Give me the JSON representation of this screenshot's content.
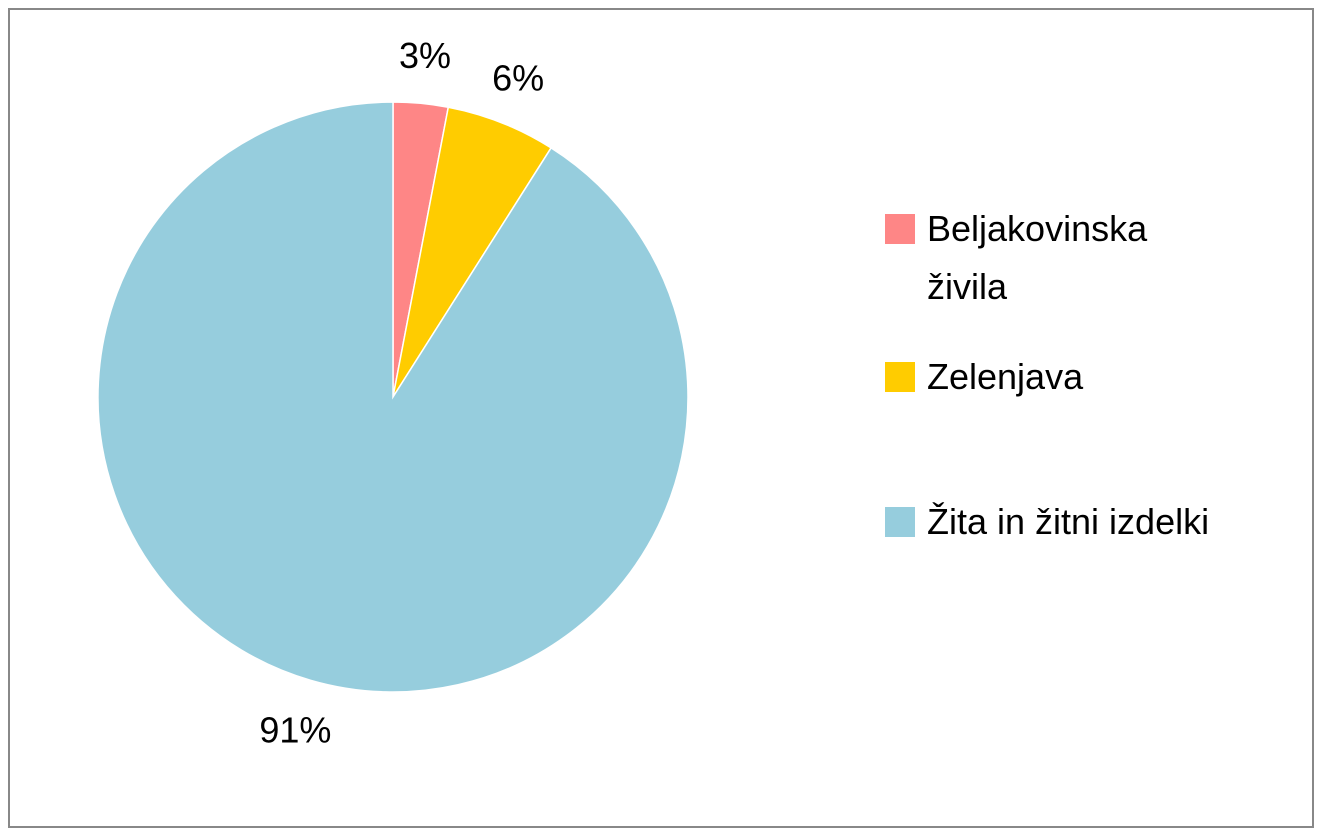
{
  "chart_data": {
    "type": "pie",
    "categories": [
      "Beljakovinska živila",
      "Zelenjava",
      "Žita in žitni izdelki"
    ],
    "values": [
      3,
      6,
      91
    ],
    "value_labels": [
      "3%",
      "6%",
      "91%"
    ],
    "colors": [
      "#fe8686",
      "#ffcc00",
      "#96cddd"
    ],
    "legend": "right"
  }
}
